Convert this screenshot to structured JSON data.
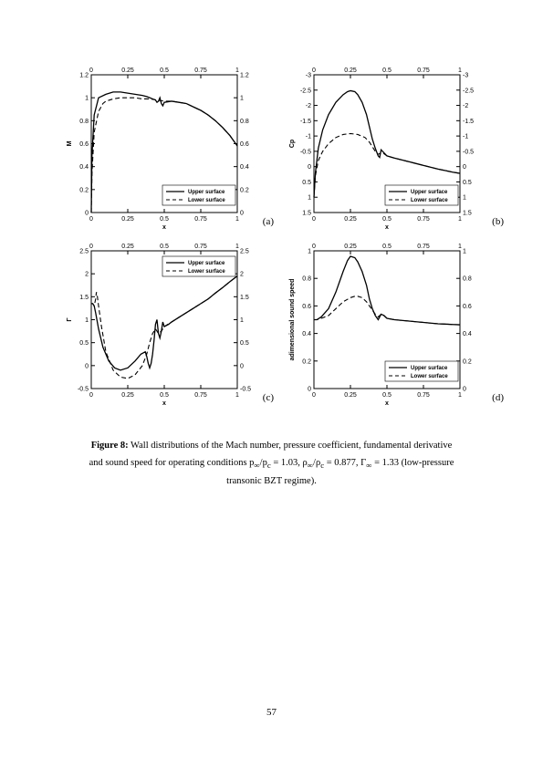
{
  "page_number": "57",
  "caption": {
    "label": "Figure 8:",
    "line1_a": " Wall distributions of the Mach number, pressure coefficient, fundamental derivative",
    "line2": "and sound speed for operating conditions p",
    "line2_sub1": "∞",
    "line2_b": "/p",
    "line2_sub2": "c",
    "line2_c": " = 1.03, ρ",
    "line2_sub3": "∞",
    "line2_d": "/ρ",
    "line2_sub4": "c",
    "line2_e": " = 0.877, Γ",
    "line2_sub5": "∞",
    "line2_f": " = 1.33 (low-pressure",
    "line3": "transonic BZT regime)."
  },
  "legend": {
    "upper": "Upper surface",
    "lower": "Lower surface"
  },
  "panels": {
    "a": {
      "letter": "(a)",
      "xlabel": "x",
      "ylabel": "M",
      "xlim": [
        0,
        1
      ],
      "ylim": [
        0,
        1.2
      ],
      "xticks": [
        0,
        0.25,
        0.5,
        0.75,
        1
      ],
      "yticks": [
        0,
        0.2,
        0.4,
        0.6,
        0.8,
        1,
        1.2
      ],
      "legend_pos": "bottom-right",
      "upper": [
        [
          0,
          0
        ],
        [
          0.005,
          0.5
        ],
        [
          0.02,
          0.85
        ],
        [
          0.05,
          1.0
        ],
        [
          0.1,
          1.03
        ],
        [
          0.15,
          1.05
        ],
        [
          0.2,
          1.05
        ],
        [
          0.25,
          1.04
        ],
        [
          0.3,
          1.03
        ],
        [
          0.35,
          1.02
        ],
        [
          0.38,
          1.01
        ],
        [
          0.4,
          1.0
        ],
        [
          0.42,
          0.99
        ],
        [
          0.44,
          0.98
        ],
        [
          0.45,
          0.96
        ],
        [
          0.46,
          0.97
        ],
        [
          0.47,
          1.0
        ],
        [
          0.48,
          0.95
        ],
        [
          0.49,
          0.93
        ],
        [
          0.5,
          0.96
        ],
        [
          0.55,
          0.97
        ],
        [
          0.6,
          0.96
        ],
        [
          0.65,
          0.95
        ],
        [
          0.7,
          0.92
        ],
        [
          0.75,
          0.89
        ],
        [
          0.8,
          0.85
        ],
        [
          0.85,
          0.8
        ],
        [
          0.9,
          0.74
        ],
        [
          0.95,
          0.67
        ],
        [
          1.0,
          0.58
        ]
      ],
      "lower": [
        [
          0,
          0
        ],
        [
          0.005,
          0.35
        ],
        [
          0.02,
          0.7
        ],
        [
          0.05,
          0.88
        ],
        [
          0.08,
          0.95
        ],
        [
          0.1,
          0.97
        ],
        [
          0.15,
          0.99
        ],
        [
          0.2,
          1.0
        ],
        [
          0.25,
          1.0
        ],
        [
          0.3,
          1.0
        ],
        [
          0.35,
          0.99
        ],
        [
          0.4,
          0.99
        ],
        [
          0.45,
          0.98
        ],
        [
          0.5,
          0.97
        ],
        [
          0.55,
          0.97
        ],
        [
          0.6,
          0.96
        ],
        [
          0.65,
          0.95
        ],
        [
          0.7,
          0.92
        ],
        [
          0.75,
          0.89
        ],
        [
          0.8,
          0.85
        ],
        [
          0.85,
          0.8
        ],
        [
          0.9,
          0.74
        ],
        [
          0.95,
          0.67
        ],
        [
          1.0,
          0.58
        ]
      ]
    },
    "b": {
      "letter": "(b)",
      "xlabel": "x",
      "ylabel": "Cp",
      "xlim": [
        0,
        1
      ],
      "ylim": [
        1.5,
        -3
      ],
      "xticks": [
        0,
        0.25,
        0.5,
        0.75,
        1
      ],
      "yticks": [
        -3,
        -2.5,
        -2,
        -1.5,
        -1,
        -0.5,
        0,
        0.5,
        1,
        1.5
      ],
      "legend_pos": "bottom-right",
      "upper": [
        [
          0,
          1.0
        ],
        [
          0.01,
          0.2
        ],
        [
          0.03,
          -0.6
        ],
        [
          0.06,
          -1.2
        ],
        [
          0.1,
          -1.7
        ],
        [
          0.15,
          -2.1
        ],
        [
          0.2,
          -2.35
        ],
        [
          0.23,
          -2.45
        ],
        [
          0.25,
          -2.48
        ],
        [
          0.28,
          -2.45
        ],
        [
          0.3,
          -2.35
        ],
        [
          0.33,
          -2.1
        ],
        [
          0.36,
          -1.7
        ],
        [
          0.38,
          -1.3
        ],
        [
          0.4,
          -0.9
        ],
        [
          0.42,
          -0.6
        ],
        [
          0.44,
          -0.35
        ],
        [
          0.45,
          -0.3
        ],
        [
          0.46,
          -0.55
        ],
        [
          0.47,
          -0.5
        ],
        [
          0.5,
          -0.35
        ],
        [
          0.55,
          -0.28
        ],
        [
          0.6,
          -0.22
        ],
        [
          0.65,
          -0.16
        ],
        [
          0.7,
          -0.1
        ],
        [
          0.75,
          -0.04
        ],
        [
          0.8,
          0.02
        ],
        [
          0.85,
          0.08
        ],
        [
          0.9,
          0.13
        ],
        [
          0.95,
          0.18
        ],
        [
          1.0,
          0.22
        ]
      ],
      "lower": [
        [
          0,
          1.0
        ],
        [
          0.01,
          0.3
        ],
        [
          0.03,
          -0.2
        ],
        [
          0.06,
          -0.5
        ],
        [
          0.1,
          -0.75
        ],
        [
          0.15,
          -0.95
        ],
        [
          0.2,
          -1.05
        ],
        [
          0.25,
          -1.08
        ],
        [
          0.3,
          -1.05
        ],
        [
          0.35,
          -0.95
        ],
        [
          0.38,
          -0.8
        ],
        [
          0.4,
          -0.65
        ],
        [
          0.42,
          -0.5
        ],
        [
          0.44,
          -0.4
        ],
        [
          0.46,
          -0.45
        ],
        [
          0.48,
          -0.42
        ],
        [
          0.5,
          -0.35
        ],
        [
          0.55,
          -0.28
        ],
        [
          0.6,
          -0.22
        ],
        [
          0.65,
          -0.16
        ],
        [
          0.7,
          -0.1
        ],
        [
          0.75,
          -0.04
        ],
        [
          0.8,
          0.02
        ],
        [
          0.85,
          0.08
        ],
        [
          0.9,
          0.13
        ],
        [
          0.95,
          0.18
        ],
        [
          1.0,
          0.22
        ]
      ]
    },
    "c": {
      "letter": "(c)",
      "xlabel": "x",
      "ylabel": "Γ",
      "xlim": [
        0,
        1
      ],
      "ylim": [
        -0.5,
        2.5
      ],
      "xticks": [
        0,
        0.25,
        0.5,
        0.75,
        1
      ],
      "yticks": [
        -0.5,
        0,
        0.5,
        1,
        1.5,
        2,
        2.5
      ],
      "legend_pos": "top-right",
      "upper": [
        [
          0,
          1.35
        ],
        [
          0.01,
          1.35
        ],
        [
          0.02,
          1.3
        ],
        [
          0.03,
          1.15
        ],
        [
          0.05,
          0.8
        ],
        [
          0.08,
          0.4
        ],
        [
          0.12,
          0.1
        ],
        [
          0.16,
          -0.05
        ],
        [
          0.2,
          -0.1
        ],
        [
          0.25,
          -0.05
        ],
        [
          0.3,
          0.1
        ],
        [
          0.34,
          0.25
        ],
        [
          0.37,
          0.3
        ],
        [
          0.38,
          0.2
        ],
        [
          0.39,
          0.05
        ],
        [
          0.4,
          -0.05
        ],
        [
          0.41,
          0.05
        ],
        [
          0.42,
          0.25
        ],
        [
          0.43,
          0.55
        ],
        [
          0.44,
          0.9
        ],
        [
          0.45,
          1.0
        ],
        [
          0.46,
          0.7
        ],
        [
          0.47,
          0.6
        ],
        [
          0.48,
          0.75
        ],
        [
          0.49,
          0.95
        ],
        [
          0.5,
          0.85
        ],
        [
          0.53,
          0.9
        ],
        [
          0.55,
          0.95
        ],
        [
          0.6,
          1.05
        ],
        [
          0.65,
          1.15
        ],
        [
          0.7,
          1.25
        ],
        [
          0.75,
          1.35
        ],
        [
          0.8,
          1.45
        ],
        [
          0.85,
          1.58
        ],
        [
          0.9,
          1.7
        ],
        [
          0.95,
          1.83
        ],
        [
          1.0,
          1.95
        ]
      ],
      "lower": [
        [
          0,
          1.35
        ],
        [
          0.01,
          1.35
        ],
        [
          0.02,
          1.3
        ],
        [
          0.03,
          1.45
        ],
        [
          0.035,
          1.6
        ],
        [
          0.04,
          1.55
        ],
        [
          0.05,
          1.3
        ],
        [
          0.07,
          0.85
        ],
        [
          0.1,
          0.3
        ],
        [
          0.15,
          -0.1
        ],
        [
          0.2,
          -0.25
        ],
        [
          0.25,
          -0.28
        ],
        [
          0.3,
          -0.2
        ],
        [
          0.35,
          0.0
        ],
        [
          0.38,
          0.25
        ],
        [
          0.4,
          0.5
        ],
        [
          0.42,
          0.7
        ],
        [
          0.44,
          0.8
        ],
        [
          0.46,
          0.7
        ],
        [
          0.48,
          0.75
        ],
        [
          0.5,
          0.85
        ],
        [
          0.55,
          0.95
        ],
        [
          0.6,
          1.05
        ],
        [
          0.65,
          1.15
        ],
        [
          0.7,
          1.25
        ],
        [
          0.75,
          1.35
        ],
        [
          0.8,
          1.45
        ],
        [
          0.85,
          1.58
        ],
        [
          0.9,
          1.7
        ],
        [
          0.95,
          1.83
        ],
        [
          1.0,
          1.95
        ]
      ]
    },
    "d": {
      "letter": "(d)",
      "xlabel": "x",
      "ylabel": "adimensional sound speed",
      "xlim": [
        0,
        1
      ],
      "ylim": [
        0,
        1
      ],
      "xticks": [
        0,
        0.25,
        0.5,
        0.75,
        1
      ],
      "yticks": [
        0,
        0.2,
        0.4,
        0.6,
        0.8,
        1
      ],
      "legend_pos": "bottom-right",
      "upper": [
        [
          0,
          0.5
        ],
        [
          0.02,
          0.5
        ],
        [
          0.05,
          0.52
        ],
        [
          0.1,
          0.58
        ],
        [
          0.15,
          0.7
        ],
        [
          0.2,
          0.85
        ],
        [
          0.23,
          0.93
        ],
        [
          0.25,
          0.96
        ],
        [
          0.28,
          0.95
        ],
        [
          0.3,
          0.92
        ],
        [
          0.33,
          0.85
        ],
        [
          0.36,
          0.75
        ],
        [
          0.38,
          0.65
        ],
        [
          0.4,
          0.58
        ],
        [
          0.42,
          0.53
        ],
        [
          0.44,
          0.5
        ],
        [
          0.46,
          0.54
        ],
        [
          0.48,
          0.53
        ],
        [
          0.5,
          0.51
        ],
        [
          0.55,
          0.5
        ],
        [
          0.6,
          0.495
        ],
        [
          0.65,
          0.49
        ],
        [
          0.7,
          0.485
        ],
        [
          0.75,
          0.48
        ],
        [
          0.8,
          0.475
        ],
        [
          0.85,
          0.47
        ],
        [
          0.9,
          0.468
        ],
        [
          0.95,
          0.465
        ],
        [
          1.0,
          0.463
        ]
      ],
      "lower": [
        [
          0,
          0.5
        ],
        [
          0.02,
          0.5
        ],
        [
          0.05,
          0.51
        ],
        [
          0.1,
          0.53
        ],
        [
          0.15,
          0.58
        ],
        [
          0.2,
          0.63
        ],
        [
          0.25,
          0.66
        ],
        [
          0.28,
          0.67
        ],
        [
          0.3,
          0.67
        ],
        [
          0.33,
          0.66
        ],
        [
          0.36,
          0.63
        ],
        [
          0.38,
          0.6
        ],
        [
          0.4,
          0.57
        ],
        [
          0.42,
          0.54
        ],
        [
          0.44,
          0.52
        ],
        [
          0.46,
          0.54
        ],
        [
          0.48,
          0.53
        ],
        [
          0.5,
          0.51
        ],
        [
          0.55,
          0.5
        ],
        [
          0.6,
          0.495
        ],
        [
          0.65,
          0.49
        ],
        [
          0.7,
          0.485
        ],
        [
          0.75,
          0.48
        ],
        [
          0.8,
          0.475
        ],
        [
          0.85,
          0.47
        ],
        [
          0.9,
          0.468
        ],
        [
          0.95,
          0.465
        ],
        [
          1.0,
          0.463
        ]
      ]
    }
  }
}
